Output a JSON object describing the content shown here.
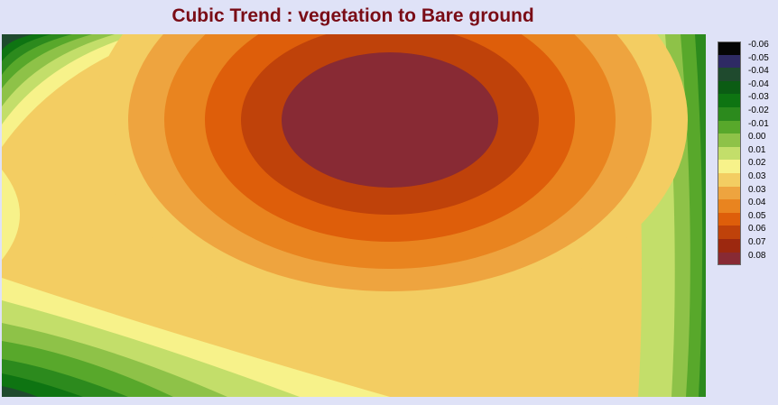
{
  "title": "Cubic Trend : vegetation to Bare ground",
  "legend": {
    "labels": [
      "-0.06",
      "-0.05",
      "-0.04",
      "-0.04",
      "-0.03",
      "-0.02",
      "-0.01",
      "0.00",
      "0.01",
      "0.02",
      "0.03",
      "0.03",
      "0.04",
      "0.05",
      "0.06",
      "0.07",
      "0.08"
    ],
    "colors": [
      "#050505",
      "#2e2a64",
      "#1f4a2e",
      "#0b5c14",
      "#0e7412",
      "#2c8a1d",
      "#58a82b",
      "#8ec248",
      "#c3de6a",
      "#f7f28a",
      "#f3cd62",
      "#eea43f",
      "#e9841f",
      "#de5e0a",
      "#bf420a",
      "#9c280f",
      "#882a34"
    ]
  }
}
